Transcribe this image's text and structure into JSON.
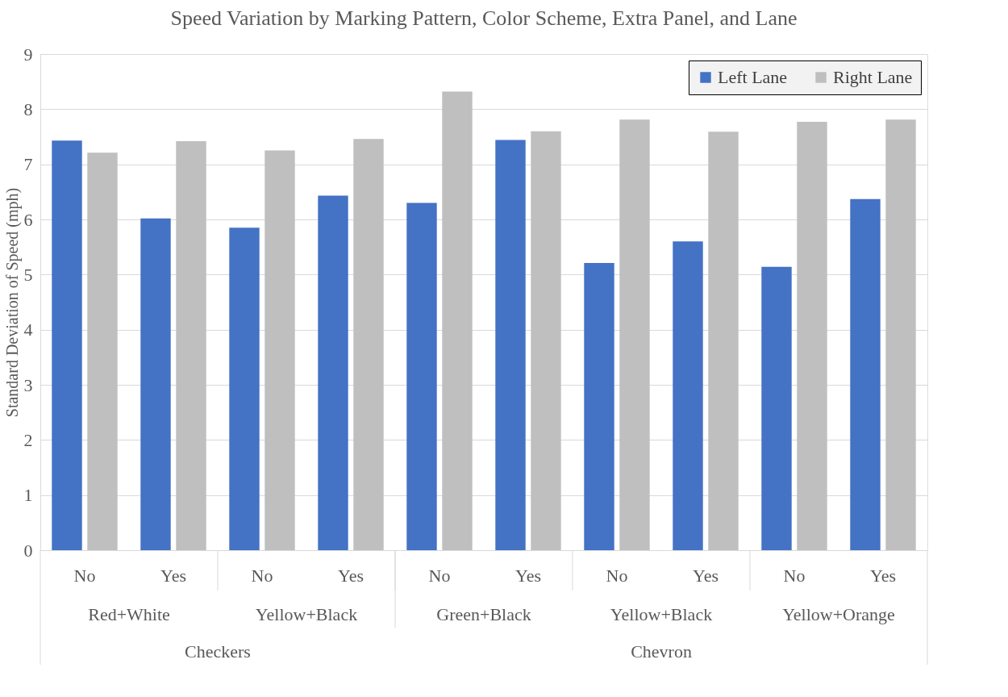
{
  "chart_data": {
    "type": "bar",
    "title": "Speed Variation by Marking Pattern, Color Scheme, Extra Panel, and Lane",
    "ylabel": "Standard Deviation of Speed (mph)",
    "categories": [
      "No",
      "Yes",
      "No",
      "Yes",
      "No",
      "Yes",
      "No",
      "Yes",
      "No",
      "Yes"
    ],
    "series": [
      {
        "name": "Left Lane",
        "color": "#4472c4",
        "values": [
          7.43,
          6.02,
          5.85,
          6.43,
          6.3,
          7.44,
          5.21,
          5.6,
          5.14,
          6.37
        ]
      },
      {
        "name": "Right Lane",
        "color": "#bfbfbf",
        "values": [
          7.21,
          7.42,
          7.25,
          7.46,
          8.32,
          7.6,
          7.81,
          7.59,
          7.77,
          7.81
        ]
      }
    ],
    "annotations": [
      "Red+White",
      "Yellow+Black",
      "Green+Black",
      "Yellow+Black",
      "Yellow+Orange",
      "Checkers",
      "Chevron"
    ],
    "ylim": [
      0,
      9
    ],
    "yticks": [
      0,
      1,
      2,
      3,
      4,
      5,
      6,
      7,
      8,
      9
    ],
    "grid": "y",
    "legend": "top right"
  }
}
